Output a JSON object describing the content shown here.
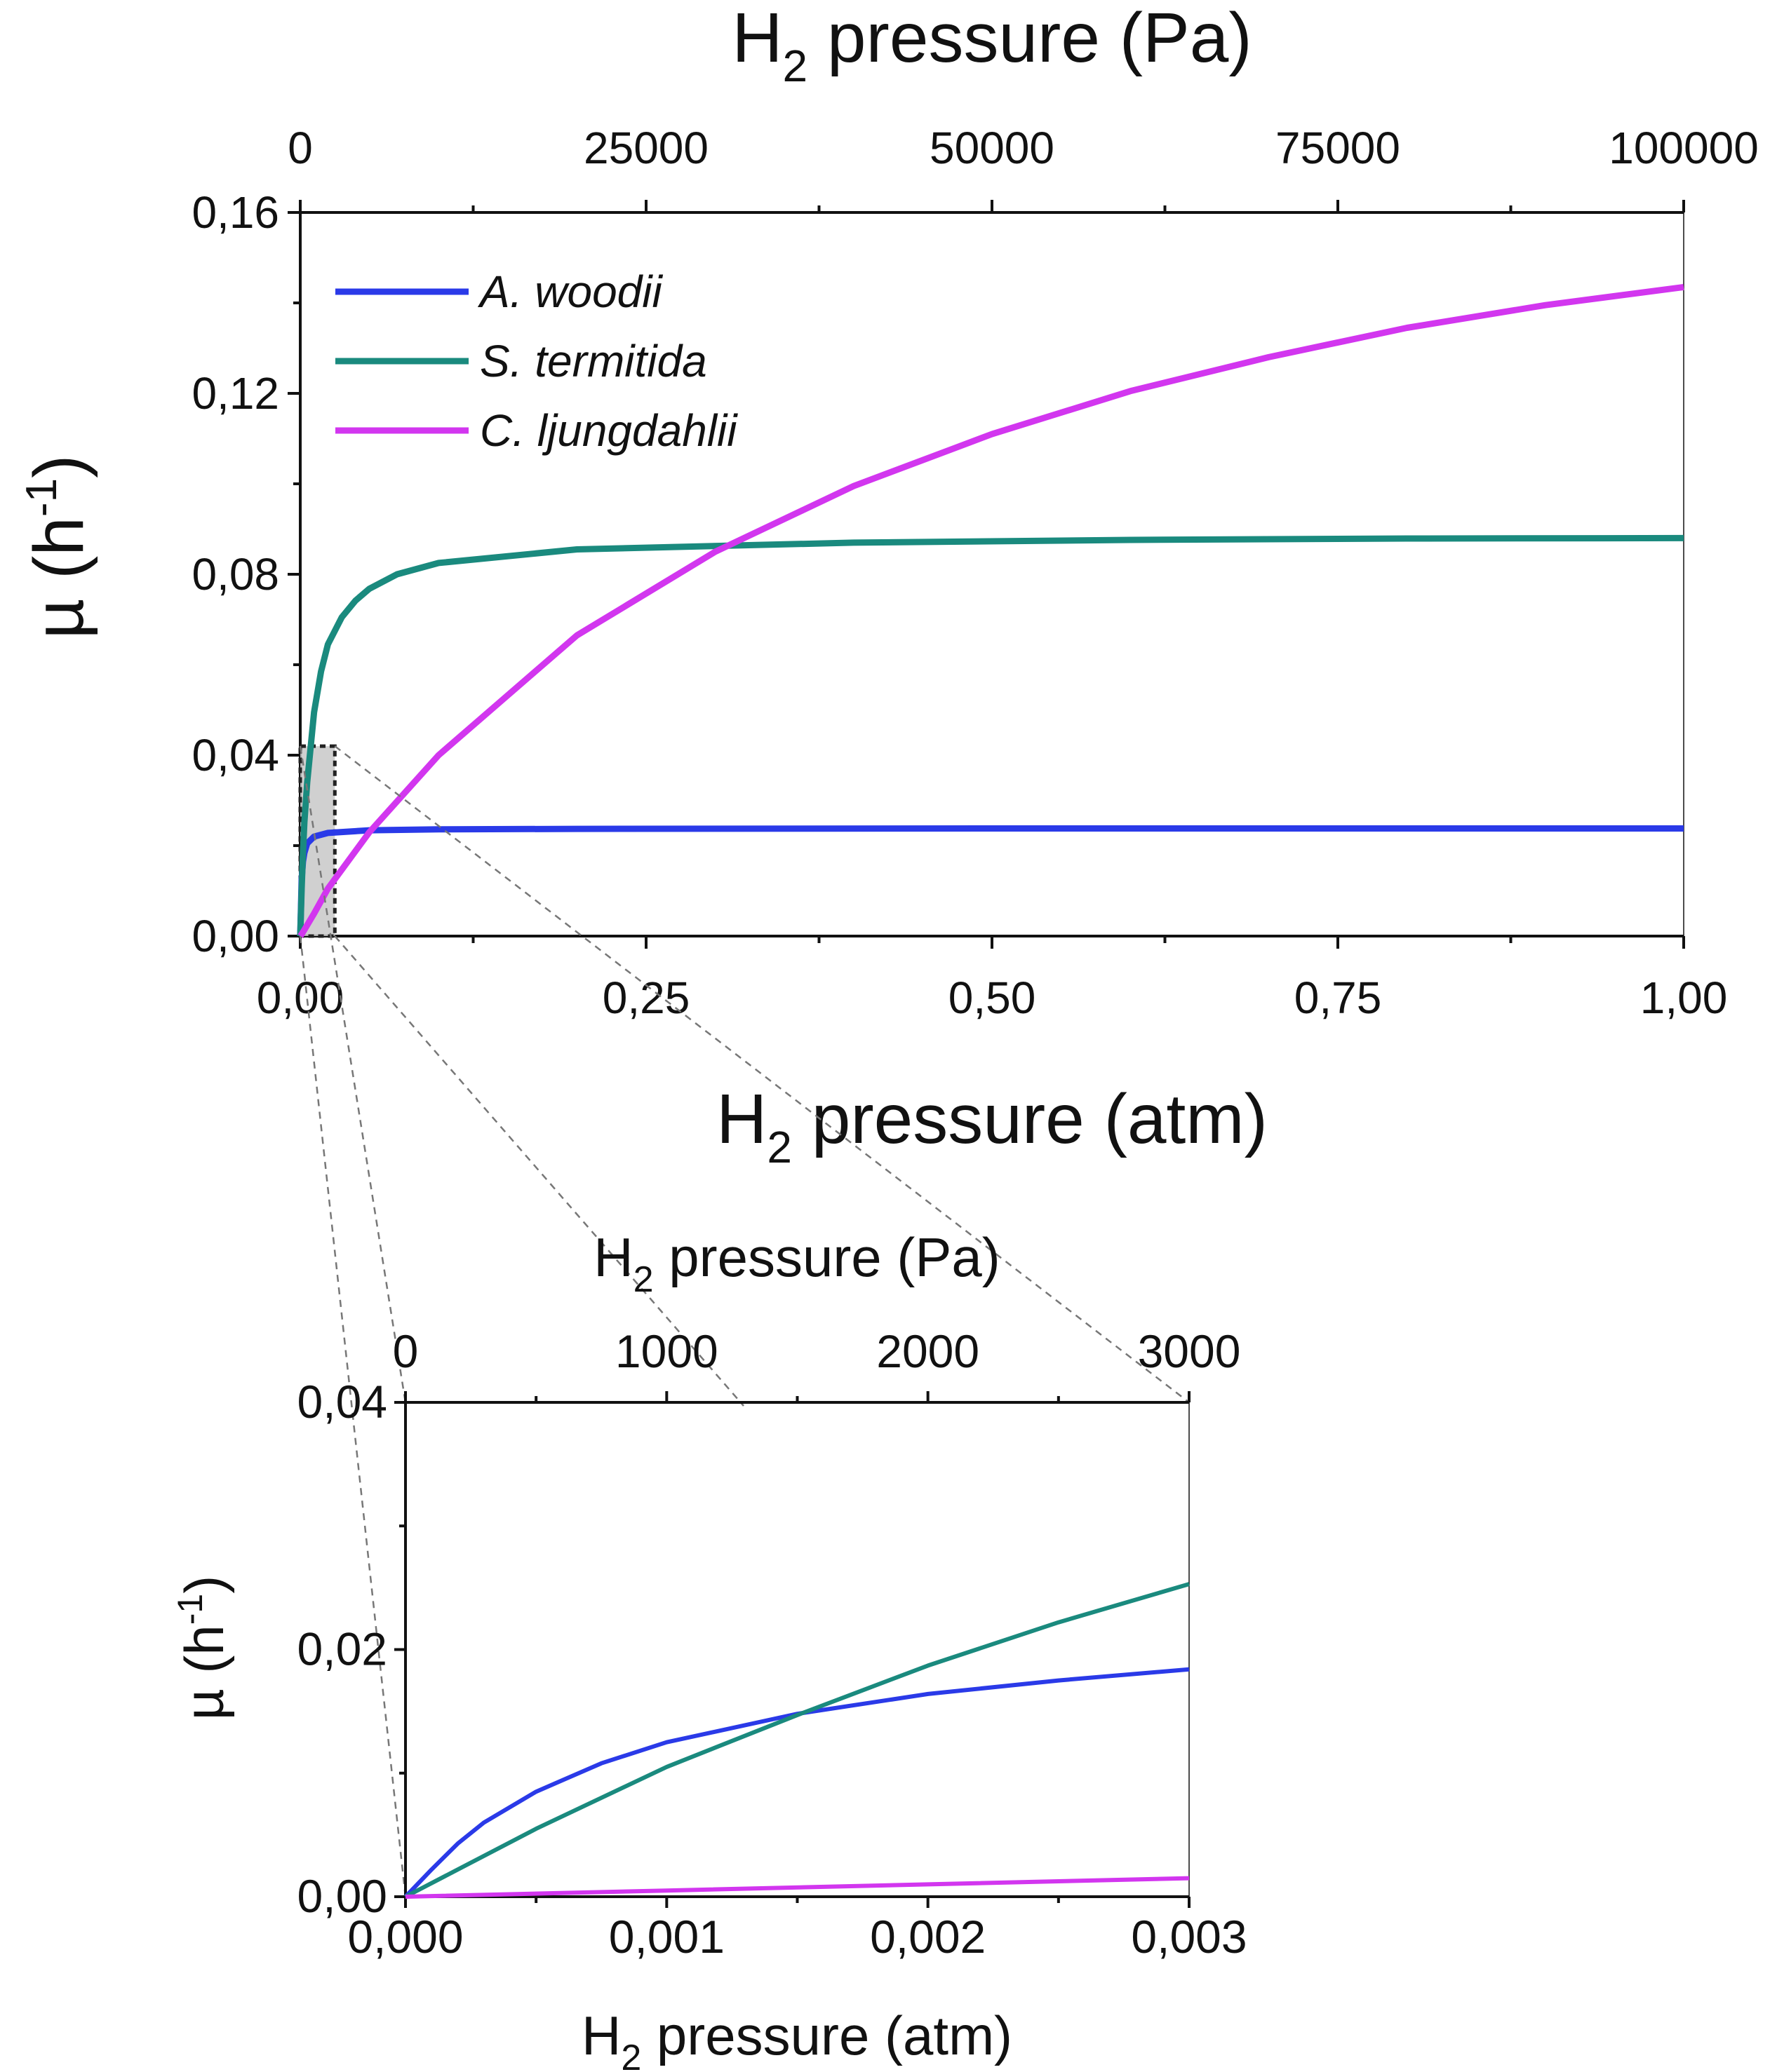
{
  "figure": {
    "title": ""
  },
  "chart_data": [
    {
      "id": "main",
      "type": "line",
      "title": "",
      "xlabel_main": "H",
      "xlabel_sub": "2",
      "xlabel_rest": " pressure (atm)",
      "x2label_main": "H",
      "x2label_sub": "2",
      "x2label_rest": " pressure (Pa)",
      "ylabel_main": "µ (h",
      "ylabel_sup": "-1",
      "ylabel_rest": ")",
      "xlim": [
        0,
        1
      ],
      "ylim": [
        0,
        0.16
      ],
      "x2lim": [
        0,
        100000
      ],
      "x_ticks": [
        "0,00",
        "0,25",
        "0,50",
        "0,75",
        "1,00"
      ],
      "x_tick_values": [
        0,
        0.25,
        0.5,
        0.75,
        1.0
      ],
      "x2_ticks": [
        "0",
        "25000",
        "50000",
        "75000",
        "100000"
      ],
      "x2_tick_values": [
        0,
        25000,
        50000,
        75000,
        100000
      ],
      "y_ticks": [
        "0,00",
        "0,04",
        "0,08",
        "0,12",
        "0,16"
      ],
      "y_tick_values": [
        0,
        0.04,
        0.08,
        0.12,
        0.16
      ],
      "zoom_region": {
        "x": [
          0,
          0.025
        ],
        "y": [
          0,
          0.042
        ]
      },
      "legend_position": "top-left",
      "series": [
        {
          "name": "A. woodii",
          "color": "#2a3ae8",
          "x": [
            0,
            0.001,
            0.002,
            0.003,
            0.005,
            0.01,
            0.02,
            0.05,
            0.1,
            0.2,
            0.5,
            1.0
          ],
          "y": [
            0,
            0.0125,
            0.0165,
            0.0184,
            0.0205,
            0.022,
            0.0228,
            0.0234,
            0.0236,
            0.0237,
            0.0238,
            0.0238
          ]
        },
        {
          "name": "S. termitida",
          "color": "#1a8a7e",
          "x": [
            0,
            0.001,
            0.002,
            0.003,
            0.005,
            0.01,
            0.015,
            0.02,
            0.03,
            0.04,
            0.05,
            0.07,
            0.1,
            0.2,
            0.4,
            0.6,
            0.8,
            1.0
          ],
          "y": [
            0,
            0.0105,
            0.0185,
            0.0252,
            0.034,
            0.0495,
            0.0585,
            0.0645,
            0.0705,
            0.0742,
            0.0768,
            0.08,
            0.0825,
            0.0855,
            0.087,
            0.0876,
            0.0879,
            0.088
          ]
        },
        {
          "name": "C. ljungdahlii",
          "color": "#d236ef",
          "x": [
            0,
            0.001,
            0.002,
            0.003,
            0.01,
            0.02,
            0.05,
            0.1,
            0.2,
            0.3,
            0.4,
            0.5,
            0.6,
            0.7,
            0.8,
            0.9,
            1.0
          ],
          "y": [
            0,
            0.0004,
            0.0009,
            0.0014,
            0.005,
            0.0105,
            0.023,
            0.04,
            0.0665,
            0.085,
            0.0995,
            0.111,
            0.1205,
            0.128,
            0.1345,
            0.1395,
            0.1435
          ]
        }
      ]
    },
    {
      "id": "inset",
      "type": "line",
      "title": "",
      "xlabel_main": "H",
      "xlabel_sub": "2",
      "xlabel_rest": " pressure (atm)",
      "x2label_main": "H",
      "x2label_sub": "2",
      "x2label_rest": " pressure (Pa)",
      "ylabel_main": "µ (h",
      "ylabel_sup": "-1",
      "ylabel_rest": ")",
      "xlim": [
        0,
        0.003
      ],
      "ylim": [
        0,
        0.04
      ],
      "x2lim": [
        0,
        3000
      ],
      "x_ticks": [
        "0,000",
        "0,001",
        "0,002",
        "0,003"
      ],
      "x_tick_values": [
        0,
        0.001,
        0.002,
        0.003
      ],
      "x2_ticks": [
        "0",
        "1000",
        "2000",
        "3000"
      ],
      "x2_tick_values": [
        0,
        1000,
        2000,
        3000
      ],
      "y_ticks": [
        "0,00",
        "0,02",
        "0,04"
      ],
      "y_tick_values": [
        0,
        0.02,
        0.04
      ],
      "series": [
        {
          "name": "A. woodii",
          "color": "#2a3ae8",
          "x": [
            0,
            0.0001,
            0.0002,
            0.0003,
            0.0005,
            0.00075,
            0.001,
            0.0015,
            0.002,
            0.0025,
            0.003
          ],
          "y": [
            0,
            0.0022,
            0.0043,
            0.006,
            0.0085,
            0.0108,
            0.0125,
            0.0148,
            0.0164,
            0.0175,
            0.0184
          ]
        },
        {
          "name": "S. termitida",
          "color": "#1a8a7e",
          "x": [
            0,
            0.0005,
            0.001,
            0.0015,
            0.002,
            0.0025,
            0.003
          ],
          "y": [
            0,
            0.0055,
            0.0105,
            0.0147,
            0.0187,
            0.0222,
            0.0253
          ]
        },
        {
          "name": "C. ljungdahlii",
          "color": "#d236ef",
          "x": [
            0,
            0.001,
            0.002,
            0.003
          ],
          "y": [
            0,
            0.0005,
            0.001,
            0.0015
          ]
        }
      ]
    }
  ]
}
